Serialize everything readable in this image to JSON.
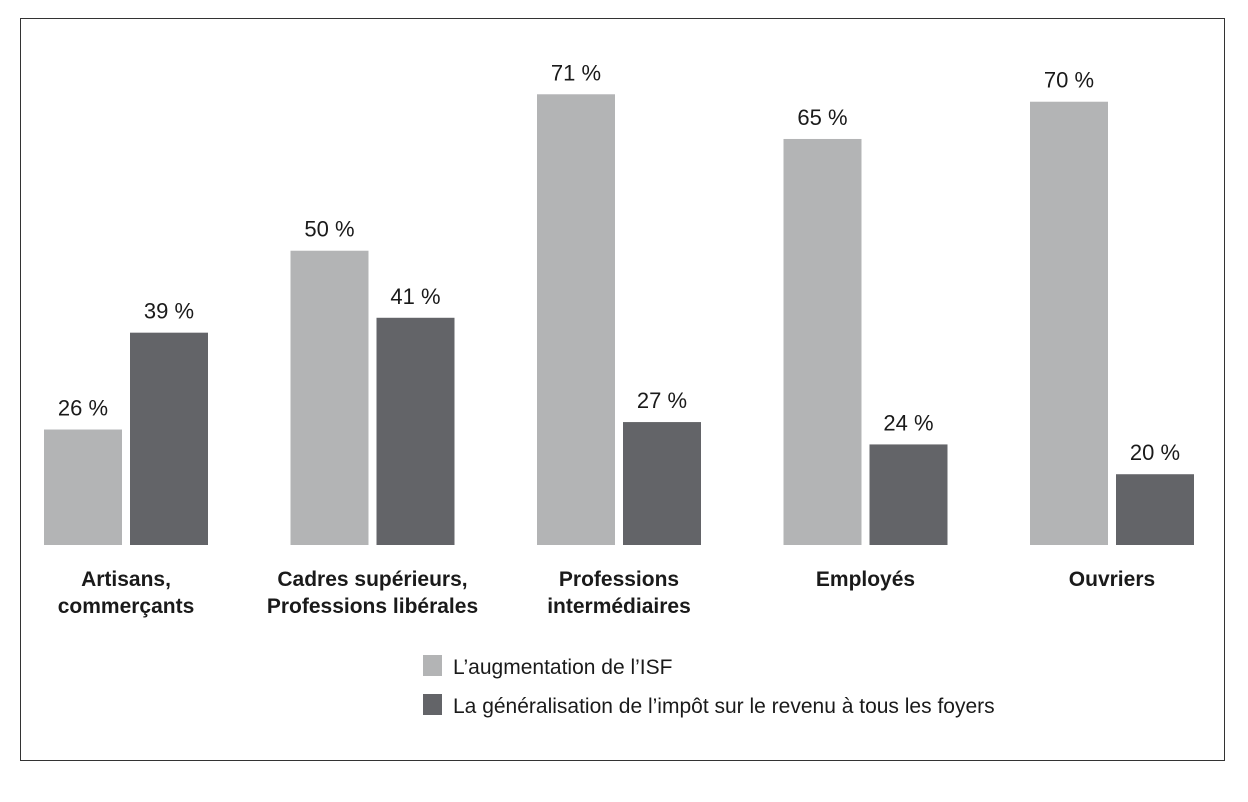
{
  "chart_data": {
    "type": "bar",
    "categories": [
      [
        "Artisans,",
        "commerçants"
      ],
      [
        "Cadres supérieurs,",
        "Professions libérales"
      ],
      [
        "Professions",
        "intermédiaires"
      ],
      [
        "Employés"
      ],
      [
        "Ouvriers"
      ]
    ],
    "series": [
      {
        "name": "L’augmentation de l’ISF",
        "color": "#b3b4b5",
        "values": [
          26,
          50,
          71,
          65,
          70
        ],
        "labels": [
          "26 %",
          "50 %",
          "71 %",
          "65 %",
          "70 %"
        ]
      },
      {
        "name": "La généralisation de l’impôt sur le revenu à tous les foyers",
        "color": "#636468",
        "values": [
          39,
          41,
          27,
          24,
          20
        ],
        "labels": [
          "39 %",
          "41 %",
          "27 %",
          "24 %",
          "20 %"
        ]
      }
    ],
    "unit": "%",
    "ylim": [
      10.5,
      72
    ],
    "grid": false,
    "y_axis_visible": false,
    "legend_position": "bottom"
  }
}
